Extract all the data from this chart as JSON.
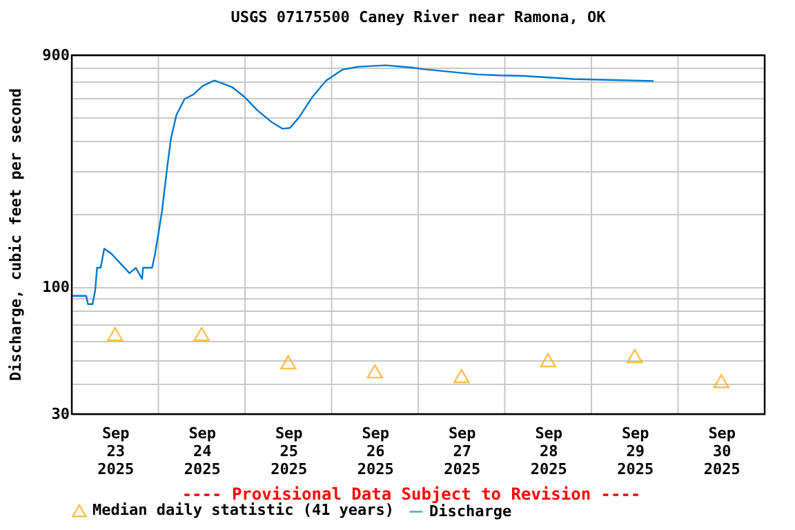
{
  "chart_data": {
    "type": "line",
    "title": "USGS 07175500 Caney River near Ramona, OK",
    "ylabel": "Discharge, cubic feet per second",
    "log": true,
    "ylim": [
      30,
      900
    ],
    "yticks": [
      30,
      {
        "value": 40,
        "label": null
      },
      {
        "value": 50,
        "label": null
      },
      {
        "value": 60,
        "label": null
      },
      {
        "value": 70,
        "label": null
      },
      {
        "value": 80,
        "label": null
      },
      {
        "value": 90,
        "label": null
      },
      100,
      {
        "value": 200,
        "label": null
      },
      {
        "value": 300,
        "label": null
      },
      {
        "value": 400,
        "label": null
      },
      {
        "value": 500,
        "label": null
      },
      {
        "value": 600,
        "label": null
      },
      {
        "value": 700,
        "label": null
      },
      {
        "value": 800,
        "label": null
      },
      900
    ],
    "xlim": [
      "2025-09-23T00:00",
      "2025-10-01T00:00"
    ],
    "xticks": [
      {
        "value": "2025-09-23T12:00",
        "label": "Sep 23 2025"
      },
      {
        "value": "2025-09-24T00:00",
        "label": null
      },
      {
        "value": "2025-09-24T12:00",
        "label": "Sep 24 2025"
      },
      {
        "value": "2025-09-25T00:00",
        "label": null
      },
      {
        "value": "2025-09-25T12:00",
        "label": "Sep 25 2025"
      },
      {
        "value": "2025-09-26T00:00",
        "label": null
      },
      {
        "value": "2025-09-26T12:00",
        "label": "Sep 26 2025"
      },
      {
        "value": "2025-09-27T00:00",
        "label": null
      },
      {
        "value": "2025-09-27T12:00",
        "label": "Sep 27 2025"
      },
      {
        "value": "2025-09-28T00:00",
        "label": null
      },
      {
        "value": "2025-09-28T12:00",
        "label": "Sep 28 2025"
      },
      {
        "value": "2025-09-29T00:00",
        "label": null
      },
      {
        "value": "2025-09-29T12:00",
        "label": "Sep 29 2025"
      },
      {
        "value": "2025-09-30T00:00",
        "label": null
      },
      {
        "value": "2025-09-30T12:00",
        "label": "Sep 30 2025"
      }
    ],
    "grid": true,
    "legend": "bottom",
    "annotations": [
      "---- Provisional Data Subject to Revision ----"
    ],
    "series": [
      {
        "name": "Median daily statistic (41 years)",
        "type": "scatter",
        "marker": "triangle",
        "color": "#ffa500",
        "x": [
          "2025-09-23T12:00",
          "2025-09-24T12:00",
          "2025-09-25T12:00",
          "2025-09-26T12:00",
          "2025-09-27T12:00",
          "2025-09-28T12:00",
          "2025-09-29T12:00",
          "2025-09-30T12:00"
        ],
        "values": [
          64,
          64,
          49,
          45,
          43,
          50,
          52,
          41
        ]
      },
      {
        "name": "Discharge",
        "color": "#0077cc",
        "x": [
          "2025-09-23T00:00",
          "2025-09-23T04:00",
          "2025-09-23T04:30",
          "2025-09-23T05:45",
          "2025-09-23T06:30",
          "2025-09-23T07:00",
          "2025-09-23T08:00",
          "2025-09-23T09:00",
          "2025-09-23T11:00",
          "2025-09-23T13:30",
          "2025-09-23T16:00",
          "2025-09-23T17:45",
          "2025-09-23T19:30",
          "2025-09-23T19:45",
          "2025-09-23T22:15",
          "2025-09-23T23:00",
          "2025-09-23T23:45",
          "2025-09-24T01:00",
          "2025-09-24T02:30",
          "2025-09-24T03:30",
          "2025-09-24T05:00",
          "2025-09-24T07:15",
          "2025-09-24T09:45",
          "2025-09-24T12:15",
          "2025-09-24T15:30",
          "2025-09-24T17:15",
          "2025-09-24T20:30",
          "2025-09-24T23:45",
          "2025-09-25T03:30",
          "2025-09-25T07:15",
          "2025-09-25T10:30",
          "2025-09-25T12:30",
          "2025-09-25T15:00",
          "2025-09-25T18:45",
          "2025-09-25T22:30",
          "2025-09-26T03:00",
          "2025-09-26T07:30",
          "2025-09-26T15:00",
          "2025-09-26T22:30",
          "2025-09-27T01:15",
          "2025-09-27T10:00",
          "2025-09-27T16:30",
          "2025-09-27T22:45",
          "2025-09-28T05:00",
          "2025-09-28T19:00",
          "2025-09-29T06:30",
          "2025-09-29T17:15"
        ],
        "values": [
          92,
          92,
          85,
          85,
          97,
          120,
          120,
          144,
          137,
          125,
          114,
          120,
          108,
          120,
          120,
          135,
          157,
          205,
          316,
          410,
          511,
          594,
          621,
          672,
          708,
          693,
          664,
          608,
          533,
          479,
          448,
          452,
          500,
          608,
          708,
          785,
          807,
          818,
          800,
          789,
          766,
          750,
          743,
          740,
          718,
          711,
          705
        ]
      }
    ]
  }
}
